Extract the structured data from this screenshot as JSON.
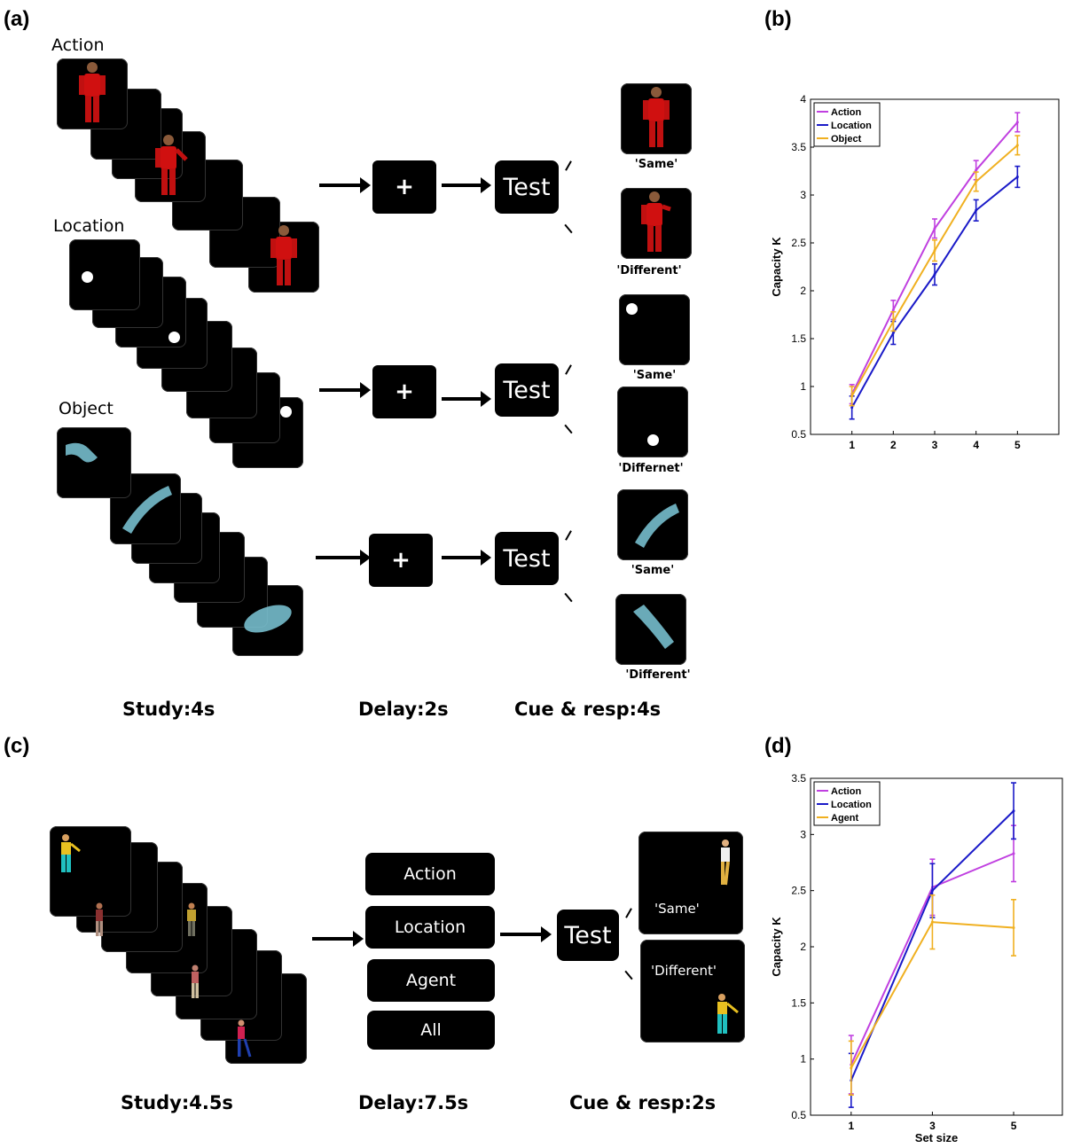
{
  "panels": {
    "a": {
      "letter": "(a)",
      "conditions": [
        "Action",
        "Location",
        "Object"
      ],
      "test_label": "Test",
      "fixation": "+",
      "cues": [
        "'Same'",
        "'Different'",
        "'Same'",
        "'Differnet'",
        "'Same'",
        "'Different'"
      ],
      "timings": [
        "Study:4s",
        "Delay:2s",
        "Cue & resp:4s"
      ]
    },
    "b": {
      "letter": "(b)"
    },
    "c": {
      "letter": "(c)",
      "cue_options": [
        "Action",
        "Location",
        "Agent",
        "All"
      ],
      "test_label": "Test",
      "responses": [
        "'Same'",
        "'Different'"
      ],
      "timings": [
        "Study:4.5s",
        "Delay:7.5s",
        "Cue & resp:2s"
      ]
    },
    "d": {
      "letter": "(d)"
    }
  },
  "colors": {
    "action": "#c040e0",
    "location": "#1a1ac8",
    "object": "#f0b020",
    "object_fill": "#7cc8d8"
  },
  "chart_data": [
    {
      "type": "line",
      "panel": "b",
      "title": "",
      "xlabel": "",
      "ylabel": "Capacity K",
      "x": [
        1,
        2,
        3,
        4,
        5
      ],
      "xticks": [
        "1",
        "2",
        "3",
        "4",
        "5"
      ],
      "yticks": [
        "0.5",
        "1",
        "1.5",
        "2",
        "2.5",
        "3",
        "3.5",
        "4"
      ],
      "ylim": [
        0.5,
        4
      ],
      "xlim": [
        0,
        6
      ],
      "legend": "top-left",
      "series": [
        {
          "name": "Action",
          "color": "#c040e0",
          "values": [
            0.92,
            1.8,
            2.65,
            3.26,
            3.76
          ],
          "err": [
            0.1,
            0.1,
            0.1,
            0.1,
            0.1
          ]
        },
        {
          "name": "Location",
          "color": "#1a1ac8",
          "values": [
            0.78,
            1.56,
            2.17,
            2.84,
            3.19
          ],
          "err": [
            0.12,
            0.12,
            0.11,
            0.11,
            0.11
          ]
        },
        {
          "name": "Object",
          "color": "#f0b020",
          "values": [
            0.9,
            1.68,
            2.42,
            3.14,
            3.52
          ],
          "err": [
            0.1,
            0.1,
            0.11,
            0.1,
            0.1
          ]
        }
      ]
    },
    {
      "type": "line",
      "panel": "d",
      "title": "",
      "xlabel": "Set size",
      "ylabel": "Capacity K",
      "x": [
        1,
        3,
        5
      ],
      "xticks": [
        "1",
        "3",
        "5"
      ],
      "yticks": [
        "0.5",
        "1",
        "1.5",
        "2",
        "2.5",
        "3",
        "3.5"
      ],
      "ylim": [
        0.5,
        3.5
      ],
      "xlim": [
        0,
        6.2
      ],
      "legend": "top-left",
      "series": [
        {
          "name": "Action",
          "color": "#c040e0",
          "values": [
            0.95,
            2.53,
            2.83
          ],
          "err": [
            0.26,
            0.25,
            0.25
          ]
        },
        {
          "name": "Location",
          "color": "#1a1ac8",
          "values": [
            0.81,
            2.5,
            3.21
          ],
          "err": [
            0.24,
            0.24,
            0.25
          ]
        },
        {
          "name": "Agent",
          "color": "#f0b020",
          "values": [
            0.92,
            2.22,
            2.17
          ],
          "err": [
            0.24,
            0.24,
            0.25
          ]
        }
      ]
    }
  ]
}
